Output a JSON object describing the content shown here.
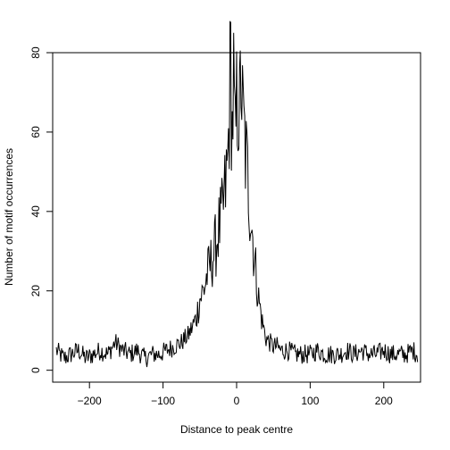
{
  "chart_data": {
    "type": "line",
    "title": "",
    "xlabel": "Distance to peak centre",
    "ylabel": "Number of motif occurrences",
    "xlim": [
      -250,
      250
    ],
    "ylim": [
      -3,
      80
    ],
    "x_ticks": [
      -200,
      -100,
      0,
      100,
      200
    ],
    "y_ticks": [
      0,
      20,
      40,
      60,
      80
    ],
    "x_tick_labels": [
      "−200",
      "−100",
      "0",
      "100",
      "200"
    ],
    "y_tick_labels": [
      "0",
      "20",
      "40",
      "60",
      "80"
    ],
    "grid": false,
    "series": [
      {
        "x": [
          -245,
          -235,
          -225,
          -215,
          -205,
          -195,
          -185,
          -175,
          -165,
          -155,
          -145,
          -135,
          -125,
          -115,
          -105,
          -95,
          -85,
          -75,
          -65,
          -60,
          -55,
          -50,
          -45,
          -40,
          -35,
          -30,
          -25,
          -20,
          -15,
          -12,
          -10,
          -8,
          -6,
          -4,
          -2,
          0,
          2,
          4,
          6,
          8,
          10,
          12,
          15,
          20,
          25,
          30,
          35,
          40,
          45,
          50,
          55,
          60,
          70,
          80,
          90,
          100,
          110,
          120,
          130,
          140,
          150,
          160,
          170,
          180,
          190,
          200,
          210,
          220,
          230,
          240,
          246
        ],
        "y": [
          5,
          3,
          4,
          5,
          3,
          4,
          5,
          4,
          7,
          5,
          4,
          5,
          3,
          4,
          4,
          5,
          6,
          7,
          9,
          11,
          13,
          18,
          20,
          24,
          27,
          30,
          35,
          38,
          46,
          52,
          66,
          77,
          60,
          72,
          55,
          66,
          70,
          62,
          76,
          64,
          60,
          55,
          49,
          38,
          27,
          18,
          12,
          8,
          7,
          6,
          6,
          5,
          5,
          4,
          4,
          4,
          5,
          4,
          4,
          4,
          5,
          4,
          5,
          4,
          4,
          5,
          4,
          4,
          4,
          5,
          4
        ]
      }
    ]
  }
}
